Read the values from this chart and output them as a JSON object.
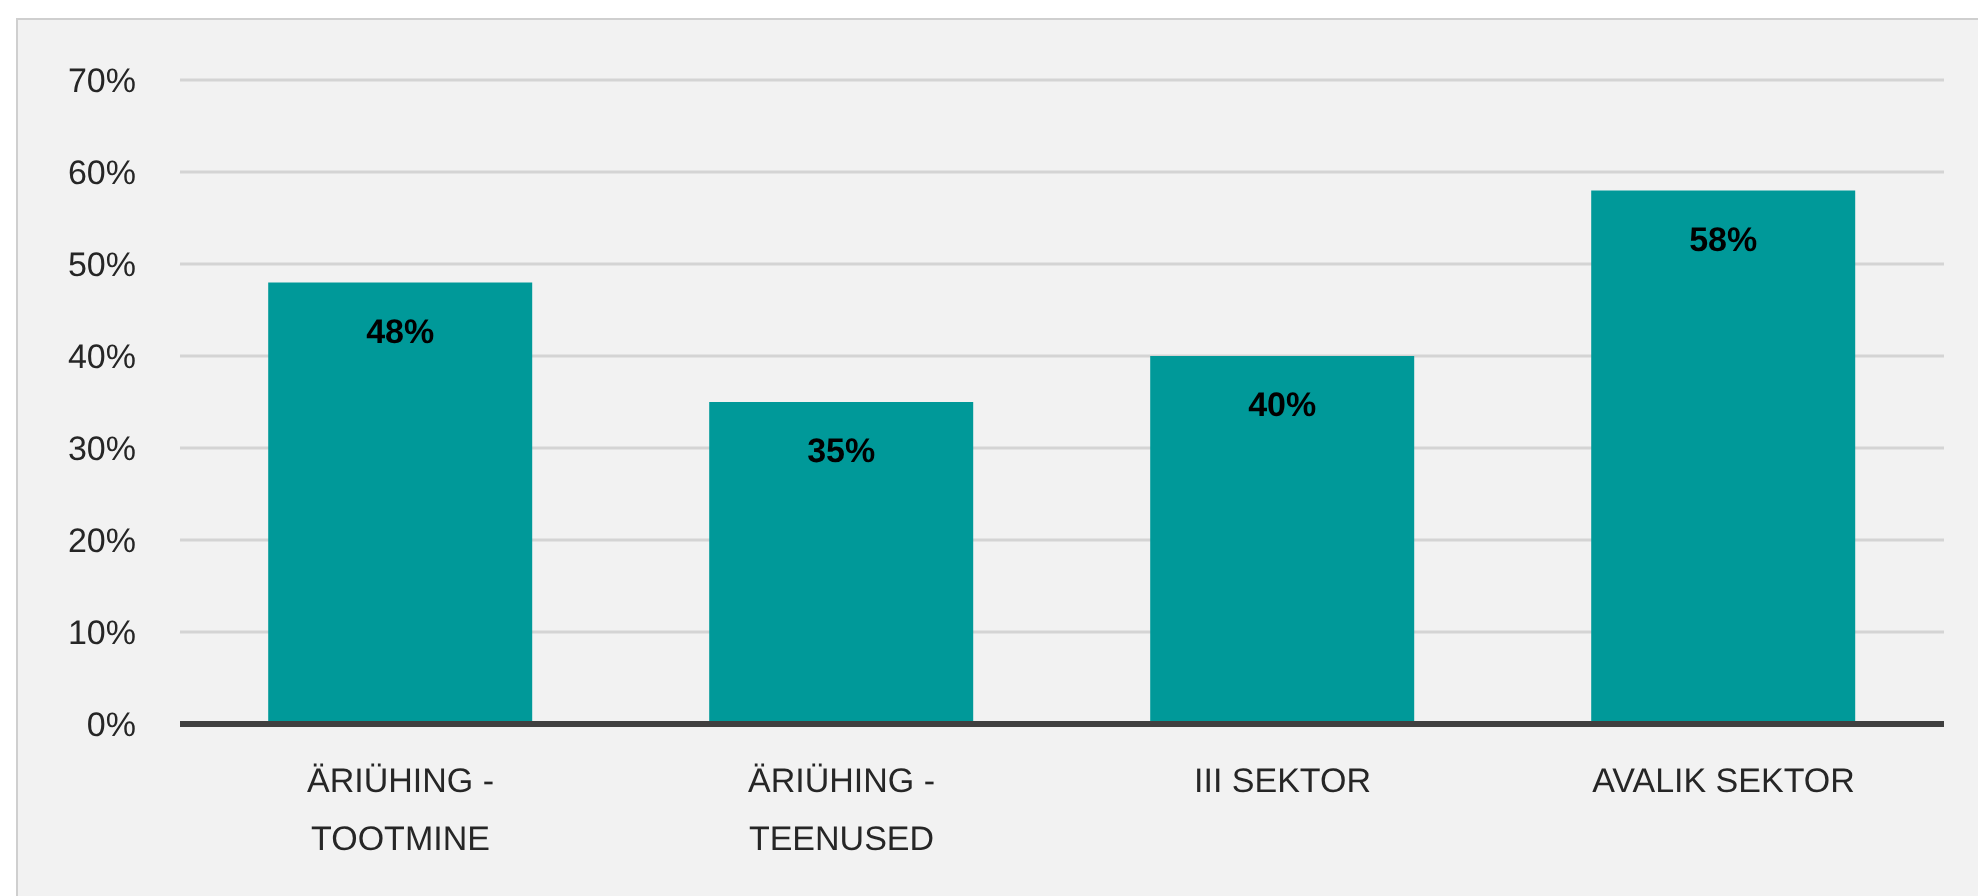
{
  "chart_data": {
    "type": "bar",
    "categories": [
      "ÄRIÜHING - TOOTMINE",
      "ÄRIÜHING - TEENUSED",
      "III SEKTOR",
      "AVALIK SEKTOR"
    ],
    "values": [
      48,
      35,
      40,
      58
    ],
    "color": "#009999",
    "value_labels": [
      "48%",
      "35%",
      "40%",
      "58%"
    ],
    "ylim": [
      0,
      70
    ],
    "yticks": [
      {
        "value": 0,
        "label": "0%"
      },
      {
        "value": 10,
        "label": "10%"
      },
      {
        "value": 20,
        "label": "20%"
      },
      {
        "value": 30,
        "label": "30%"
      },
      {
        "value": 40,
        "label": "40%"
      },
      {
        "value": 50,
        "label": "50%"
      },
      {
        "value": 60,
        "label": "60%"
      },
      {
        "value": 70,
        "label": "70%"
      }
    ],
    "grid": "y"
  }
}
